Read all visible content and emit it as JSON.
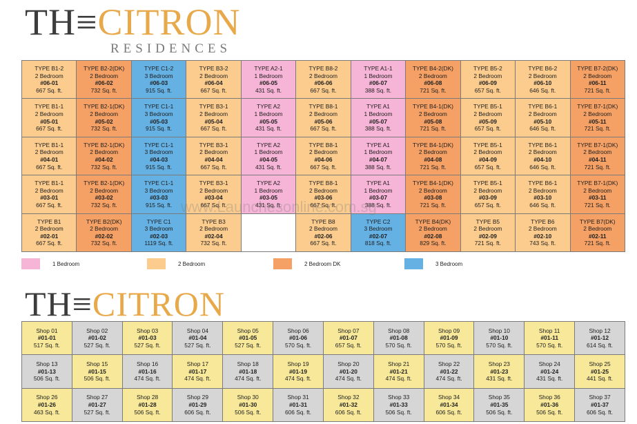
{
  "logo": {
    "the": "TH≡",
    "citron": "CITRON",
    "residences": "RESIDENCES"
  },
  "colors": {
    "1_bedroom": "#f6b4d6",
    "2_bedroom": "#fbcc8e",
    "2_bedroom_dk": "#f5a165",
    "3_bedroom": "#65b1e3",
    "shop_yellow": "#f7e89a",
    "shop_grey": "#d6d6d6"
  },
  "units": [
    [
      {
        "type": "TYPE B1-2",
        "bed": "2 Bedroom",
        "unit": "#06-01",
        "size": "667 Sq. ft.",
        "cat": "2b"
      },
      {
        "type": "TYPE B2-2(DK)",
        "bed": "2 Bedroom",
        "unit": "#06-02",
        "size": "732 Sq. ft.",
        "cat": "2dk"
      },
      {
        "type": "TYPE C1-2",
        "bed": "3 Bedroom",
        "unit": "#06-03",
        "size": "915 Sq. ft.",
        "cat": "3b"
      },
      {
        "type": "TYPE B3-2",
        "bed": "2 Bedroom",
        "unit": "#06-04",
        "size": "667 Sq. ft.",
        "cat": "2b"
      },
      {
        "type": "TYPE A2-1",
        "bed": "1 Bedroom",
        "unit": "#06-05",
        "size": "431 Sq. ft.",
        "cat": "1b"
      },
      {
        "type": "TYPE B8-2",
        "bed": "2 Bedroom",
        "unit": "#06-06",
        "size": "667 Sq. ft.",
        "cat": "2b"
      },
      {
        "type": "TYPE A1-1",
        "bed": "1 Bedroom",
        "unit": "#06-07",
        "size": "388 Sq. ft.",
        "cat": "1b"
      },
      {
        "type": "TYPE B4-2(DK)",
        "bed": "2 Bedroom",
        "unit": "#06-08",
        "size": "721 Sq. ft.",
        "cat": "2dk"
      },
      {
        "type": "TYPE B5-2",
        "bed": "2 Bedroom",
        "unit": "#06-09",
        "size": "657 Sq. ft.",
        "cat": "2b"
      },
      {
        "type": "TYPE B6-2",
        "bed": "2 Bedroom",
        "unit": "#06-10",
        "size": "646 Sq. ft.",
        "cat": "2b"
      },
      {
        "type": "TYPE B7-2(DK)",
        "bed": "2 Bedroom",
        "unit": "#06-11",
        "size": "721 Sq. ft.",
        "cat": "2dk"
      }
    ],
    [
      {
        "type": "TYPE B1-1",
        "bed": "2 Bedroom",
        "unit": "#05-01",
        "size": "667 Sq. ft.",
        "cat": "2b"
      },
      {
        "type": "TYPE B2-1(DK)",
        "bed": "2 Bedroom",
        "unit": "#05-02",
        "size": "732 Sq. ft.",
        "cat": "2dk"
      },
      {
        "type": "TYPE C1-1",
        "bed": "3 Bedroom",
        "unit": "#05-03",
        "size": "915 Sq. ft.",
        "cat": "3b"
      },
      {
        "type": "TYPE B3-1",
        "bed": "2 Bedroom",
        "unit": "#05-04",
        "size": "667 Sq. ft.",
        "cat": "2b"
      },
      {
        "type": "TYPE A2",
        "bed": "1 Bedroom",
        "unit": "#05-05",
        "size": "431 Sq. ft.",
        "cat": "1b"
      },
      {
        "type": "TYPE B8-1",
        "bed": "2 Bedroom",
        "unit": "#05-06",
        "size": "667 Sq. ft.",
        "cat": "2b"
      },
      {
        "type": "TYPE A1",
        "bed": "1 Bedroom",
        "unit": "#05-07",
        "size": "388 Sq. ft.",
        "cat": "1b"
      },
      {
        "type": "TYPE B4-1(DK)",
        "bed": "2 Bedroom",
        "unit": "#05-08",
        "size": "721 Sq. ft.",
        "cat": "2dk"
      },
      {
        "type": "TYPE B5-1",
        "bed": "2 Bedroom",
        "unit": "#05-09",
        "size": "657 Sq. ft.",
        "cat": "2b"
      },
      {
        "type": "TYPE B6-1",
        "bed": "2 Bedroom",
        "unit": "#05-10",
        "size": "646 Sq. ft.",
        "cat": "2b"
      },
      {
        "type": "TYPE B7-1(DK)",
        "bed": "2 Bedroom",
        "unit": "#05-11",
        "size": "721 Sq. ft.",
        "cat": "2dk"
      }
    ],
    [
      {
        "type": "TYPE B1-1",
        "bed": "2 Bedroom",
        "unit": "#04-01",
        "size": "667 Sq. ft.",
        "cat": "2b"
      },
      {
        "type": "TYPE B2-1(DK)",
        "bed": "2 Bedroom",
        "unit": "#04-02",
        "size": "732 Sq. ft.",
        "cat": "2dk"
      },
      {
        "type": "TYPE C1-1",
        "bed": "3 Bedroom",
        "unit": "#04-03",
        "size": "915 Sq. ft.",
        "cat": "3b"
      },
      {
        "type": "TYPE B3-1",
        "bed": "2 Bedroom",
        "unit": "#04-04",
        "size": "667 Sq. ft.",
        "cat": "2b"
      },
      {
        "type": "TYPE A2",
        "bed": "1 Bedroom",
        "unit": "#04-05",
        "size": "431 Sq. ft.",
        "cat": "1b"
      },
      {
        "type": "TYPE B8-1",
        "bed": "2 Bedroom",
        "unit": "#04-06",
        "size": "667 Sq. ft.",
        "cat": "2b"
      },
      {
        "type": "TYPE A1",
        "bed": "1 Bedroom",
        "unit": "#04-07",
        "size": "388 Sq. ft.",
        "cat": "1b"
      },
      {
        "type": "TYPE B4-1(DK)",
        "bed": "2 Bedroom",
        "unit": "#04-08",
        "size": "721 Sq. ft.",
        "cat": "2dk"
      },
      {
        "type": "TYPE B5-1",
        "bed": "2 Bedroom",
        "unit": "#04-09",
        "size": "657 Sq. ft.",
        "cat": "2b"
      },
      {
        "type": "TYPE B6-1",
        "bed": "2 Bedroom",
        "unit": "#04-10",
        "size": "646 Sq. ft.",
        "cat": "2b"
      },
      {
        "type": "TYPE B7-1(DK)",
        "bed": "2 Bedroom",
        "unit": "#04-11",
        "size": "721 Sq. ft.",
        "cat": "2dk"
      }
    ],
    [
      {
        "type": "TYPE B1-1",
        "bed": "2 Bedroom",
        "unit": "#03-01",
        "size": "667 Sq. ft.",
        "cat": "2b"
      },
      {
        "type": "TYPE B2-1(DK)",
        "bed": "2 Bedroom",
        "unit": "#03-02",
        "size": "732 Sq. ft.",
        "cat": "2dk"
      },
      {
        "type": "TYPE C1-1",
        "bed": "3 Bedroom",
        "unit": "#03-03",
        "size": "915 Sq. ft.",
        "cat": "3b"
      },
      {
        "type": "TYPE B3-1",
        "bed": "2 Bedroom",
        "unit": "#03-04",
        "size": "667 Sq. ft.",
        "cat": "2b"
      },
      {
        "type": "TYPE A2",
        "bed": "1 Bedroom",
        "unit": "#03-05",
        "size": "431 Sq. ft.",
        "cat": "1b"
      },
      {
        "type": "TYPE B8-1",
        "bed": "2 Bedroom",
        "unit": "#03-06",
        "size": "667 Sq. ft.",
        "cat": "2b"
      },
      {
        "type": "TYPE A1",
        "bed": "1 Bedroom",
        "unit": "#03-07",
        "size": "388 Sq. ft.",
        "cat": "1b"
      },
      {
        "type": "TYPE B4-1(DK)",
        "bed": "2 Bedroom",
        "unit": "#03-08",
        "size": "721 Sq. ft.",
        "cat": "2dk"
      },
      {
        "type": "TYPE B5-1",
        "bed": "2 Bedroom",
        "unit": "#03-09",
        "size": "657 Sq. ft.",
        "cat": "2b"
      },
      {
        "type": "TYPE B6-1",
        "bed": "2 Bedroom",
        "unit": "#03-10",
        "size": "646 Sq. ft.",
        "cat": "2b"
      },
      {
        "type": "TYPE B7-1(DK)",
        "bed": "2 Bedroom",
        "unit": "#03-11",
        "size": "721 Sq. ft.",
        "cat": "2dk"
      }
    ],
    [
      {
        "type": "TYPE B1",
        "bed": "2 Bedroom",
        "unit": "#02-01",
        "size": "667 Sq. ft.",
        "cat": "2b"
      },
      {
        "type": "TYPE B2(DK)",
        "bed": "2 Bedroom",
        "unit": "#02-02",
        "size": "732 Sq. ft.",
        "cat": "2dk"
      },
      {
        "type": "TYPE C1",
        "bed": "3 Bedroom",
        "unit": "#02-03",
        "size": "1119 Sq. ft.",
        "cat": "3b"
      },
      {
        "type": "TYPE B3",
        "bed": "2 Bedroom",
        "unit": "#02-04",
        "size": "732 Sq. ft.",
        "cat": "2b"
      },
      {
        "type": "",
        "bed": "",
        "unit": "",
        "size": "",
        "cat": "empty"
      },
      {
        "type": "TYPE B8",
        "bed": "2 Bedroom",
        "unit": "#02-06",
        "size": "667 Sq. ft.",
        "cat": "2b"
      },
      {
        "type": "TYPE C2",
        "bed": "3 Bedroom",
        "unit": "#02-07",
        "size": "818 Sq. ft.",
        "cat": "3b"
      },
      {
        "type": "TYPE B4(DK)",
        "bed": "2 Bedroom",
        "unit": "#02-08",
        "size": "829 Sq. ft.",
        "cat": "2dk"
      },
      {
        "type": "TYPE B5",
        "bed": "2 Bedroom",
        "unit": "#02-09",
        "size": "721 Sq. ft.",
        "cat": "2b"
      },
      {
        "type": "TYPE B6",
        "bed": "2 Bedroom",
        "unit": "#02-10",
        "size": "743 Sq. ft.",
        "cat": "2b"
      },
      {
        "type": "TYPE B7(DK)",
        "bed": "2 Bedroom",
        "unit": "#02-11",
        "size": "721 Sq. ft.",
        "cat": "2dk"
      }
    ]
  ],
  "legend": [
    {
      "label": "1 Bedroom",
      "cat": "1b"
    },
    {
      "label": "2 Bedroom",
      "cat": "2b"
    },
    {
      "label": "2 Bedroom DK",
      "cat": "2dk"
    },
    {
      "label": "3 Bedroom",
      "cat": "3b"
    }
  ],
  "watermark": "www.Launchesonline.com.sg",
  "shops": [
    [
      {
        "name": "Shop 01",
        "unit": "#01-01",
        "size": "517 Sq. ft.",
        "c": "y"
      },
      {
        "name": "Shop 02",
        "unit": "#01-02",
        "size": "527 Sq. ft.",
        "c": "g"
      },
      {
        "name": "Shop 03",
        "unit": "#01-03",
        "size": "527 Sq. ft.",
        "c": "y"
      },
      {
        "name": "Shop 04",
        "unit": "#01-04",
        "size": "527 Sq. ft.",
        "c": "g"
      },
      {
        "name": "Shop 05",
        "unit": "#01-05",
        "size": "527 Sq. ft.",
        "c": "y"
      },
      {
        "name": "Shop 06",
        "unit": "#01-06",
        "size": "570 Sq. ft.",
        "c": "g"
      },
      {
        "name": "Shop 07",
        "unit": "#01-07",
        "size": "657 Sq. ft.",
        "c": "y"
      },
      {
        "name": "Shop 08",
        "unit": "#01-08",
        "size": "570 Sq. ft.",
        "c": "g"
      },
      {
        "name": "Shop 09",
        "unit": "#01-09",
        "size": "570 Sq. ft.",
        "c": "y"
      },
      {
        "name": "Shop 10",
        "unit": "#01-10",
        "size": "570 Sq. ft.",
        "c": "g"
      },
      {
        "name": "Shop 11",
        "unit": "#01-11",
        "size": "570 Sq. ft.",
        "c": "y"
      },
      {
        "name": "Shop 12",
        "unit": "#01-12",
        "size": "614 Sq. ft.",
        "c": "g"
      }
    ],
    [
      {
        "name": "Shop 13",
        "unit": "#01-13",
        "size": "506 Sq. ft.",
        "c": "g"
      },
      {
        "name": "Shop 15",
        "unit": "#01-15",
        "size": "506 Sq. ft.",
        "c": "y"
      },
      {
        "name": "Shop 16",
        "unit": "#01-16",
        "size": "474 Sq. ft.",
        "c": "g"
      },
      {
        "name": "Shop 17",
        "unit": "#01-17",
        "size": "474 Sq. ft.",
        "c": "y"
      },
      {
        "name": "Shop 18",
        "unit": "#01-18",
        "size": "474 Sq. ft.",
        "c": "g"
      },
      {
        "name": "Shop 19",
        "unit": "#01-19",
        "size": "474 Sq. ft.",
        "c": "y"
      },
      {
        "name": "Shop 20",
        "unit": "#01-20",
        "size": "474 Sq. ft.",
        "c": "g"
      },
      {
        "name": "Shop 21",
        "unit": "#01-21",
        "size": "474 Sq. ft.",
        "c": "y"
      },
      {
        "name": "Shop 22",
        "unit": "#01-22",
        "size": "474 Sq. ft.",
        "c": "g"
      },
      {
        "name": "Shop 23",
        "unit": "#01-23",
        "size": "431 Sq. ft.",
        "c": "y"
      },
      {
        "name": "Shop 24",
        "unit": "#01-24",
        "size": "431 Sq. ft.",
        "c": "g"
      },
      {
        "name": "Shop 25",
        "unit": "#01-25",
        "size": "441 Sq. ft.",
        "c": "y"
      }
    ],
    [
      {
        "name": "Shop 26",
        "unit": "#01-26",
        "size": "463 Sq. ft.",
        "c": "y"
      },
      {
        "name": "Shop 27",
        "unit": "#01-27",
        "size": "527 Sq. ft.",
        "c": "g"
      },
      {
        "name": "Shop 28",
        "unit": "#01-28",
        "size": "506 Sq. ft.",
        "c": "y"
      },
      {
        "name": "Shop 29",
        "unit": "#01-29",
        "size": "606 Sq. ft.",
        "c": "g"
      },
      {
        "name": "Shop 30",
        "unit": "#01-30",
        "size": "506 Sq. ft.",
        "c": "y"
      },
      {
        "name": "Shop 31",
        "unit": "#01-31",
        "size": "606 Sq. ft.",
        "c": "g"
      },
      {
        "name": "Shop 32",
        "unit": "#01-32",
        "size": "606 Sq. ft.",
        "c": "y"
      },
      {
        "name": "Shop 33",
        "unit": "#01-33",
        "size": "506 Sq. ft.",
        "c": "g"
      },
      {
        "name": "Shop 34",
        "unit": "#01-34",
        "size": "606 Sq. ft.",
        "c": "y"
      },
      {
        "name": "Shop 35",
        "unit": "#01-35",
        "size": "506 Sq. ft.",
        "c": "g"
      },
      {
        "name": "Shop 36",
        "unit": "#01-36",
        "size": "506 Sq. ft.",
        "c": "y"
      },
      {
        "name": "Shop 37",
        "unit": "#01-37",
        "size": "606 Sq. ft.",
        "c": "g"
      }
    ]
  ]
}
